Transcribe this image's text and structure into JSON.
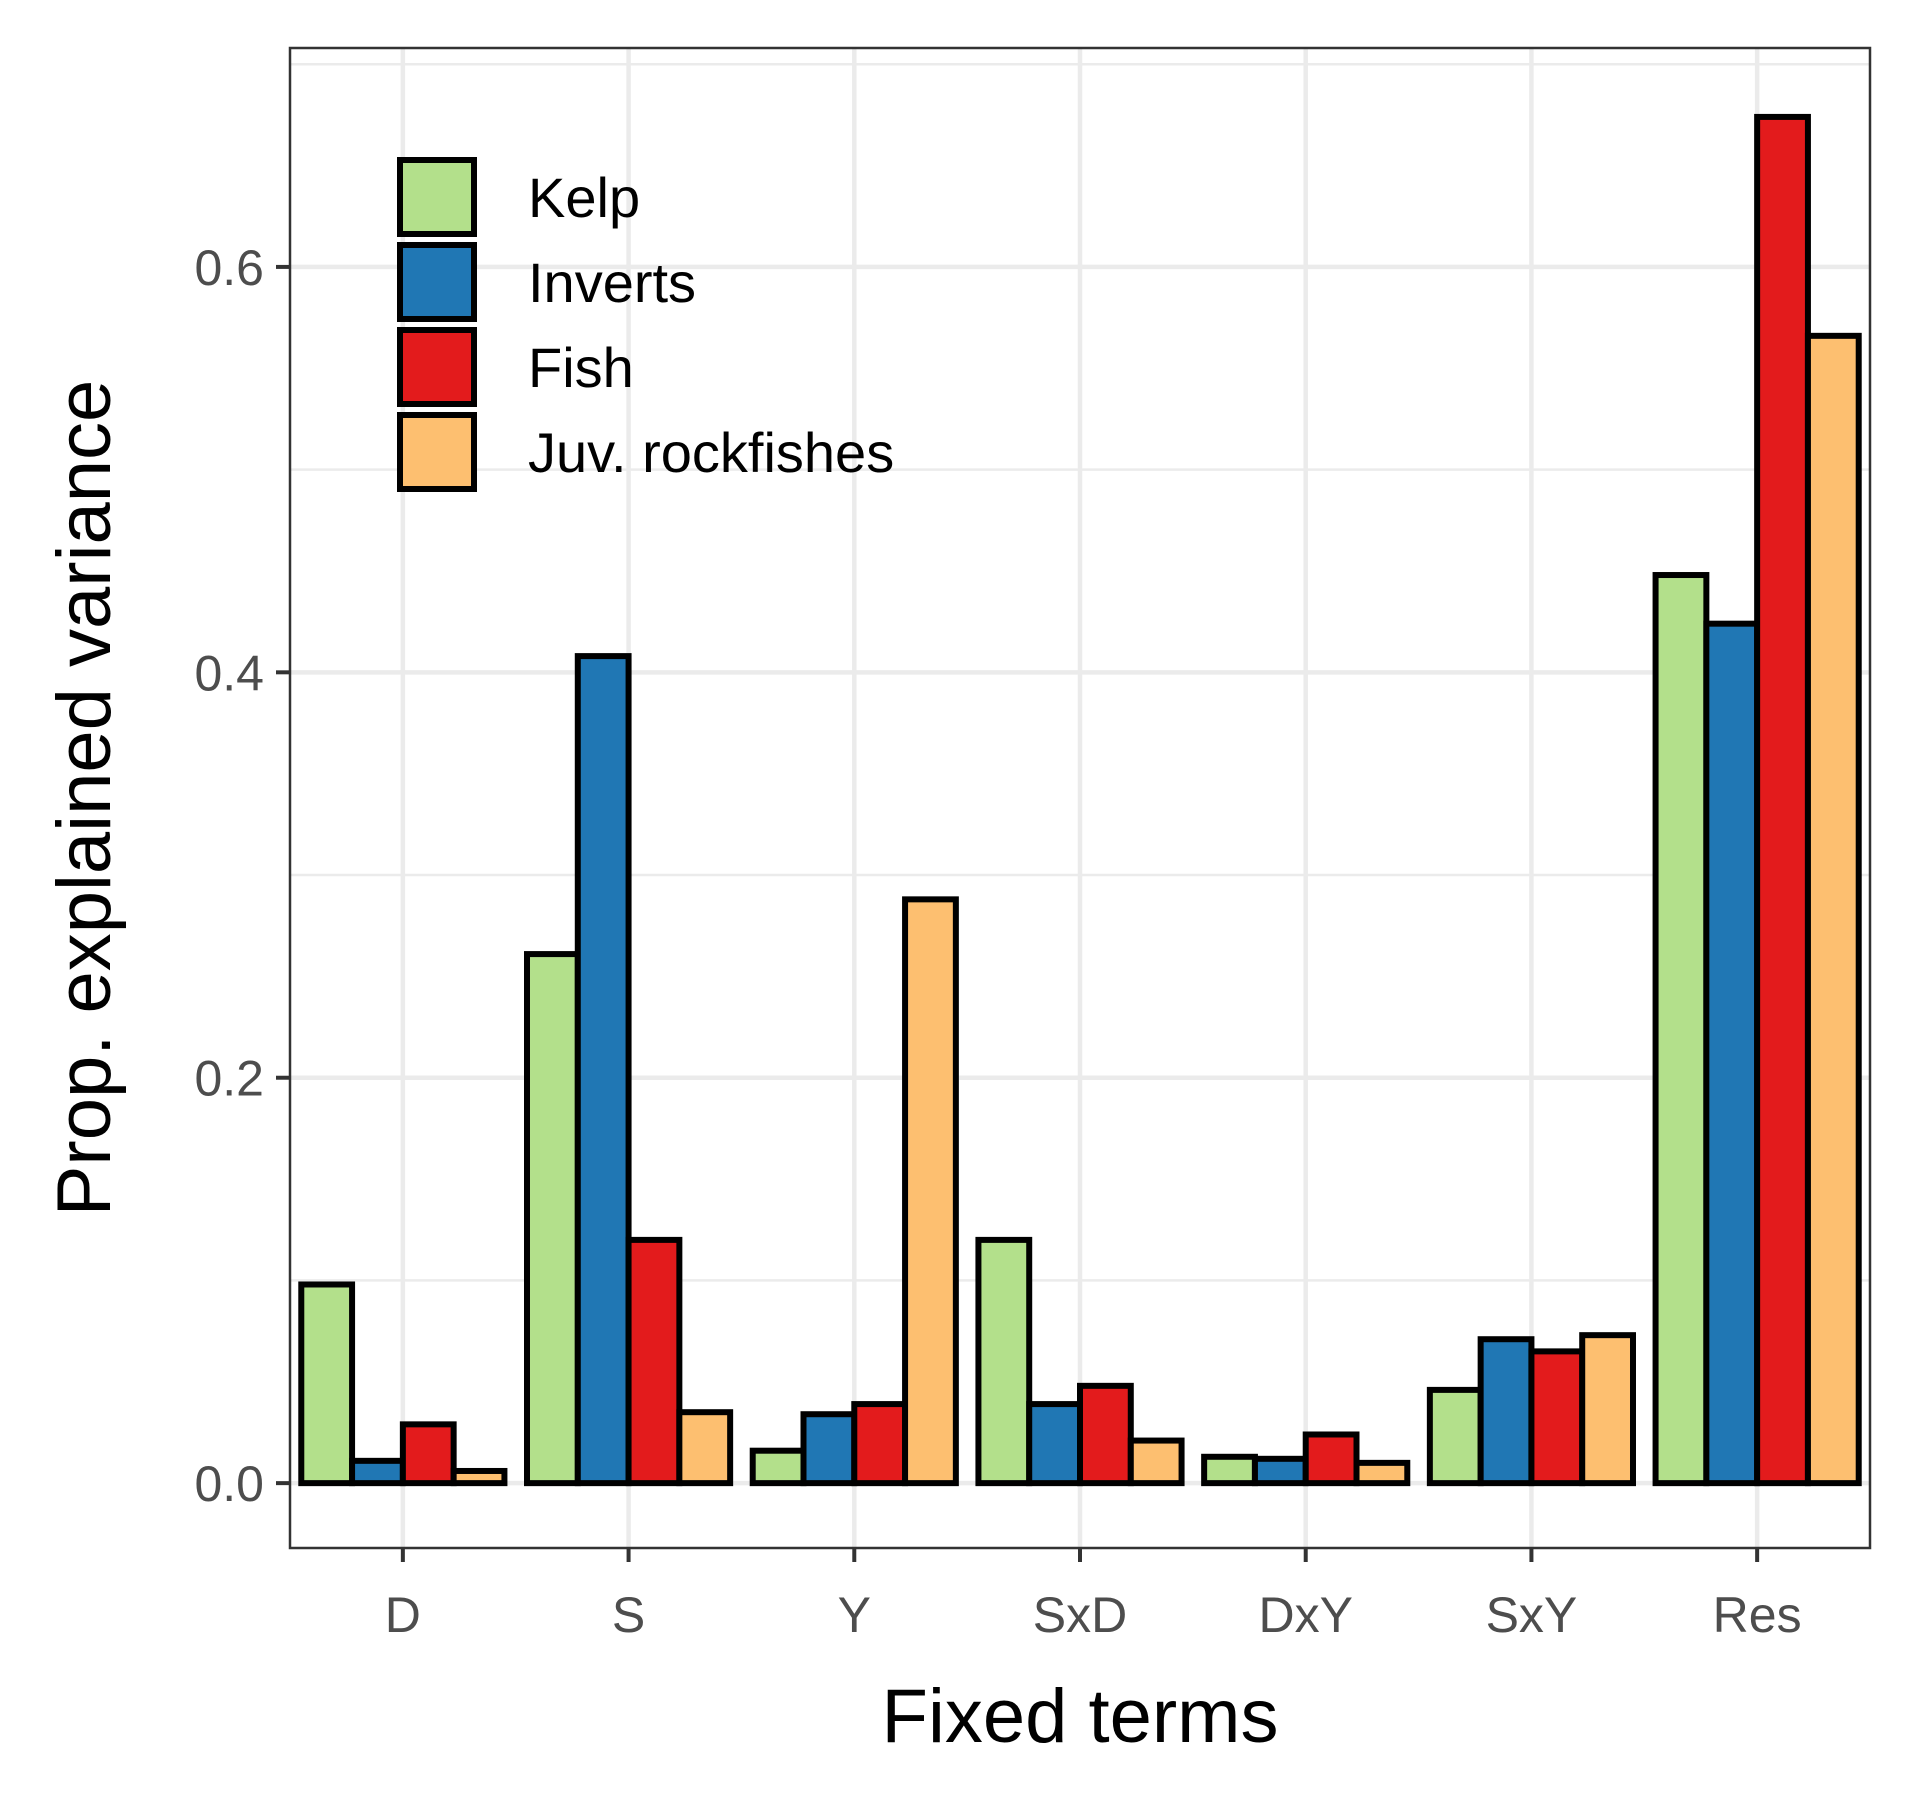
{
  "chart_data": {
    "type": "bar",
    "title": "",
    "xlabel": "Fixed terms",
    "ylabel": "Prop. explained variance",
    "categories": [
      "D",
      "S",
      "Y",
      "SxD",
      "DxY",
      "SxY",
      "Res"
    ],
    "series": [
      {
        "name": "Kelp",
        "color": "#b3e08b",
        "values": [
          0.098,
          0.261,
          0.016,
          0.12,
          0.013,
          0.046,
          0.448
        ]
      },
      {
        "name": "Inverts",
        "color": "#2077b4",
        "values": [
          0.011,
          0.408,
          0.034,
          0.039,
          0.012,
          0.071,
          0.424
        ]
      },
      {
        "name": "Fish",
        "color": "#e31b1c",
        "values": [
          0.029,
          0.12,
          0.039,
          0.048,
          0.024,
          0.065,
          0.674
        ]
      },
      {
        "name": "Juv. rockfishes",
        "color": "#fdbf70",
        "values": [
          0.006,
          0.035,
          0.288,
          0.021,
          0.01,
          0.073,
          0.566
        ]
      }
    ],
    "ylim": [
      -0.032,
      0.708
    ],
    "yticks": [
      0.0,
      0.2,
      0.4,
      0.6
    ],
    "ytick_labels": [
      "0.0",
      "0.2",
      "0.4",
      "0.6"
    ],
    "grid": true,
    "legend_position": "top-left"
  }
}
